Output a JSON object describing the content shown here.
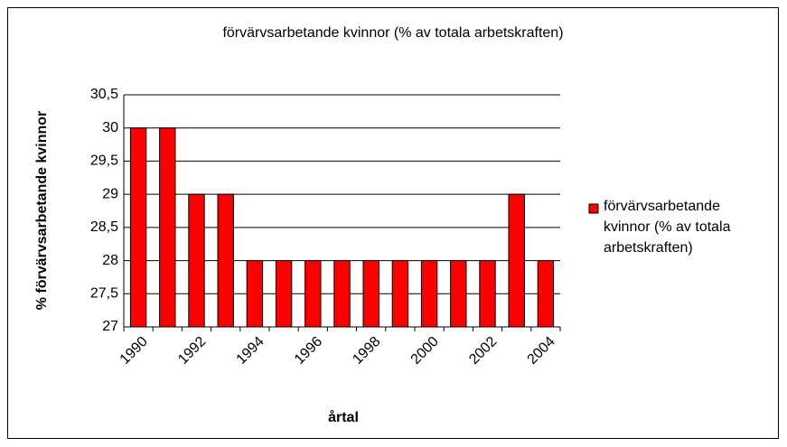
{
  "chart_data": {
    "type": "bar",
    "title": "förvärvsarbetande kvinnor (% av totala arbetskraften)",
    "x_label": "årtal",
    "y_label": "% förvärvsarbetande kvinnor",
    "categories": [
      "1990",
      null,
      "1992",
      null,
      "1994",
      null,
      "1996",
      null,
      "1998",
      null,
      "2000",
      null,
      "2002",
      null,
      "2004"
    ],
    "series": [
      {
        "name": "förvärvsarbetande kvinnor (% av totala arbetskraften)",
        "color": "#ff0000",
        "values": [
          30,
          30,
          29,
          29,
          28,
          28,
          28,
          28,
          28,
          28,
          28,
          28,
          28,
          29,
          28
        ]
      }
    ],
    "ylim": [
      27,
      30.5
    ],
    "yticks": [
      27,
      {
        "value": 27.5,
        "label": "27,5"
      },
      28,
      {
        "value": 28.5,
        "label": "28,5"
      },
      29,
      {
        "value": 29.5,
        "label": "29,5"
      },
      30,
      {
        "value": 30.5,
        "label": "30,5"
      }
    ],
    "grid": true,
    "legend": "right"
  }
}
